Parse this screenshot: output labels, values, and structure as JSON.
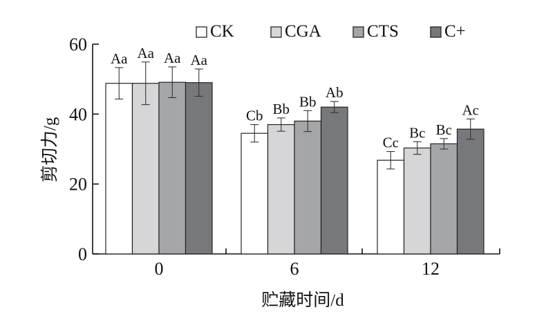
{
  "chart_data": {
    "type": "bar",
    "xlabel": "贮藏时间/d",
    "ylabel": "剪切力/g",
    "ylim": [
      0,
      60
    ],
    "yticks": [
      0,
      20,
      40,
      60
    ],
    "categories": [
      "0",
      "6",
      "12"
    ],
    "legend_position": "top",
    "grid": false,
    "series": [
      {
        "name": "CK",
        "color": "#ffffff",
        "values": [
          48.8,
          34.5,
          26.8
        ],
        "errors": [
          4.5,
          2.5,
          2.5
        ],
        "labels": [
          "Aa",
          "Cb",
          "Cc"
        ]
      },
      {
        "name": "CGA",
        "color": "#d6d6d8",
        "values": [
          48.8,
          37.0,
          30.3
        ],
        "errors": [
          6.1,
          1.9,
          1.8
        ],
        "labels": [
          "Aa",
          "Bb",
          "Bc"
        ]
      },
      {
        "name": "CTS",
        "color": "#a5a6a9",
        "values": [
          49.1,
          38.0,
          31.5
        ],
        "errors": [
          4.4,
          3.0,
          1.5
        ],
        "labels": [
          "Aa",
          "Bb",
          "Bc"
        ]
      },
      {
        "name": "C+",
        "color": "#77787b",
        "values": [
          49.0,
          42.0,
          35.7
        ],
        "errors": [
          3.9,
          1.6,
          2.9
        ],
        "labels": [
          "Aa",
          "Ab",
          "Ac"
        ]
      }
    ]
  }
}
